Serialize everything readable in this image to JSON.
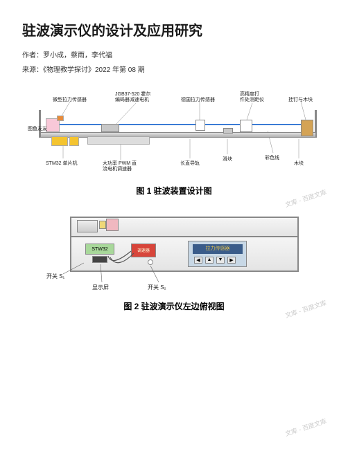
{
  "title": "驻波演示仪的设计及应用研究",
  "authors_line": "作者：罗小成，蔡雨，李代福",
  "source_line": "来源：《物理教学探讨》2022 年第 08 期",
  "watermark_text": "文库 - 百度文库",
  "figure1": {
    "caption": "图 1  驻波装置设计图",
    "labels": {
      "micro_tension_sensor": "微型拉力传感器",
      "motor": "JGB37-520 霍尔\n编码器减速电机",
      "tension_sensor_digital": "德国拉力传感器",
      "high_precision": "高精度打\n件处测距仪",
      "screw_wood": "挂钉与木块",
      "sound_source": "图鱼友友",
      "stm32": "STM32 单片机",
      "pwm_driver": "大功率 PWM 直\n流电机调速器",
      "long_rail": "长直导轨",
      "slider": "滑块",
      "color_line": "彩色线",
      "wood_block": "木块"
    },
    "colors": {
      "rail": "#888888",
      "yellow_box": "#f4c430",
      "orange_box": "#e88b3a",
      "pink_box": "#f8c8d8",
      "blue_line": "#3a7bd5",
      "wood": "#d4a355",
      "white_box": "#ffffff",
      "gray_box": "#c8c8c8"
    }
  },
  "figure2": {
    "caption": "图 2  驻波演示仪左边俯视图",
    "labels": {
      "switch1": "开关 S₁",
      "display": "显示屏",
      "switch2": "开关 S₂",
      "stm32": "STW32",
      "speed_knob": "调速器",
      "tension_reading": "拉力传感器"
    },
    "colors": {
      "frame_bg": "#e8e8e8",
      "frame_border": "#808080",
      "stm32_box": "#a8d89a",
      "red_box": "#d8453a",
      "meter_bg": "#c8d8e6",
      "meter_screen": "#3a5c8a",
      "meter_text": "#e0c050",
      "pink_cube": "#f0b8c0",
      "yellow_cube": "#f0d878",
      "button_bg": "#e8e8e8"
    }
  }
}
